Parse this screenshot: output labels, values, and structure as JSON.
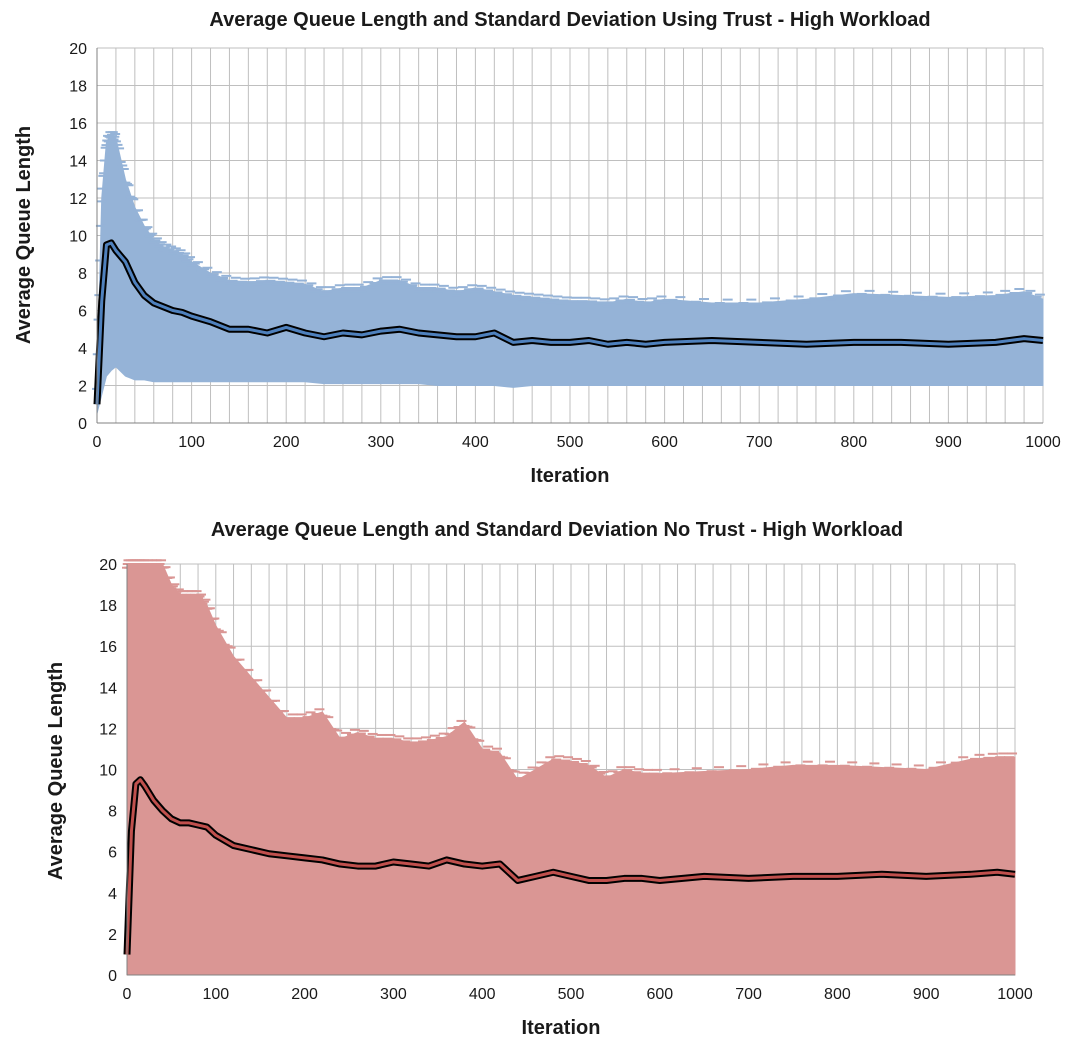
{
  "chart_data": [
    {
      "type": "line",
      "title": "Average Queue Length  and Standard Deviation Using Trust - High Workload",
      "xlabel": "Iteration",
      "ylabel": "Average Queue Length",
      "xlim": [
        0,
        1000
      ],
      "ylim": [
        0,
        20
      ],
      "xticks": [
        0,
        100,
        200,
        300,
        400,
        500,
        600,
        700,
        800,
        900,
        1000
      ],
      "yticks": [
        0,
        2,
        4,
        6,
        8,
        10,
        12,
        14,
        16,
        18,
        20
      ],
      "grid": true,
      "band_color": "#95b3d7",
      "line_color": "#4f81bd",
      "series": [
        {
          "x": [
            0,
            5,
            10,
            15,
            20,
            30,
            40,
            50,
            60,
            70,
            80,
            90,
            100,
            120,
            140,
            160,
            180,
            200,
            220,
            240,
            260,
            280,
            300,
            320,
            340,
            360,
            380,
            400,
            420,
            440,
            460,
            480,
            500,
            520,
            540,
            560,
            580,
            600,
            650,
            700,
            750,
            800,
            850,
            900,
            950,
            980,
            1000
          ],
          "mean": [
            1.0,
            6.5,
            9.5,
            9.6,
            9.2,
            8.6,
            7.5,
            6.8,
            6.4,
            6.2,
            6.0,
            5.9,
            5.7,
            5.4,
            5.0,
            5.0,
            4.8,
            5.1,
            4.8,
            4.6,
            4.8,
            4.7,
            4.9,
            5.0,
            4.8,
            4.7,
            4.6,
            4.6,
            4.8,
            4.3,
            4.4,
            4.3,
            4.3,
            4.4,
            4.2,
            4.3,
            4.2,
            4.3,
            4.4,
            4.3,
            4.2,
            4.3,
            4.3,
            4.2,
            4.3,
            4.5,
            4.4
          ],
          "upper": [
            2.0,
            12.0,
            15.0,
            15.4,
            15.2,
            13.0,
            11.5,
            10.5,
            9.8,
            9.4,
            9.2,
            9.0,
            8.6,
            8.0,
            7.6,
            7.5,
            7.6,
            7.5,
            7.4,
            7.0,
            7.2,
            7.2,
            7.6,
            7.6,
            7.2,
            7.2,
            7.0,
            7.2,
            7.0,
            6.8,
            6.7,
            6.6,
            6.5,
            6.5,
            6.4,
            6.6,
            6.4,
            6.6,
            6.4,
            6.4,
            6.6,
            6.9,
            6.8,
            6.7,
            6.8,
            7.0,
            6.6
          ],
          "lower": [
            0.5,
            1.5,
            2.5,
            2.8,
            3.0,
            2.5,
            2.3,
            2.3,
            2.2,
            2.2,
            2.2,
            2.2,
            2.2,
            2.2,
            2.2,
            2.2,
            2.2,
            2.2,
            2.2,
            2.1,
            2.1,
            2.1,
            2.1,
            2.1,
            2.1,
            2.0,
            2.0,
            2.0,
            2.0,
            1.9,
            2.0,
            2.0,
            2.0,
            2.0,
            2.0,
            2.0,
            2.0,
            2.0,
            2.0,
            2.0,
            2.0,
            2.0,
            2.0,
            2.0,
            2.0,
            2.0,
            2.0
          ]
        }
      ]
    },
    {
      "type": "line",
      "title": "Average Queue Length  and Standard Deviation No Trust - High Workload",
      "xlabel": "Iteration",
      "ylabel": "Average Queue Length",
      "xlim": [
        0,
        1000
      ],
      "ylim": [
        0,
        20
      ],
      "xticks": [
        0,
        100,
        200,
        300,
        400,
        500,
        600,
        700,
        800,
        900,
        1000
      ],
      "yticks": [
        0,
        2,
        4,
        6,
        8,
        10,
        12,
        14,
        16,
        18,
        20
      ],
      "grid": true,
      "band_color": "#da9694",
      "line_color": "#c0504d",
      "series": [
        {
          "x": [
            0,
            5,
            10,
            15,
            20,
            30,
            40,
            50,
            60,
            70,
            80,
            90,
            100,
            120,
            140,
            160,
            180,
            200,
            220,
            240,
            260,
            280,
            300,
            320,
            340,
            360,
            380,
            400,
            420,
            440,
            460,
            480,
            500,
            520,
            540,
            560,
            580,
            600,
            650,
            700,
            750,
            800,
            850,
            900,
            950,
            980,
            1000
          ],
          "mean": [
            1.0,
            7.0,
            9.3,
            9.5,
            9.2,
            8.5,
            8.0,
            7.6,
            7.4,
            7.4,
            7.3,
            7.2,
            6.8,
            6.3,
            6.1,
            5.9,
            5.8,
            5.7,
            5.6,
            5.4,
            5.3,
            5.3,
            5.5,
            5.4,
            5.3,
            5.6,
            5.4,
            5.3,
            5.4,
            4.6,
            4.8,
            5.0,
            4.8,
            4.6,
            4.6,
            4.7,
            4.7,
            4.6,
            4.8,
            4.7,
            4.8,
            4.8,
            4.9,
            4.8,
            4.9,
            5.0,
            4.9
          ],
          "upper": [
            20.0,
            20.0,
            20.0,
            20.0,
            20.0,
            20.0,
            20.0,
            19.0,
            18.5,
            18.5,
            18.5,
            18.0,
            17.0,
            15.5,
            14.5,
            13.5,
            12.5,
            12.5,
            12.8,
            11.5,
            11.8,
            11.5,
            11.5,
            11.3,
            11.4,
            11.6,
            12.3,
            11.0,
            10.8,
            9.5,
            10.0,
            10.5,
            10.4,
            10.2,
            9.6,
            10.0,
            9.8,
            9.8,
            9.9,
            10.0,
            10.2,
            10.2,
            10.1,
            10.0,
            10.5,
            10.6,
            10.6
          ],
          "lower": [
            0,
            0,
            0,
            0,
            0,
            0,
            0,
            0,
            0,
            0,
            0,
            0,
            0,
            0,
            0,
            0,
            0,
            0,
            0,
            0,
            0,
            0,
            0,
            0,
            0,
            0,
            0,
            0,
            0,
            0,
            0,
            0,
            0,
            0,
            0,
            0,
            0,
            0,
            0,
            0,
            0,
            0,
            0,
            0,
            0,
            0,
            0
          ]
        }
      ]
    }
  ]
}
